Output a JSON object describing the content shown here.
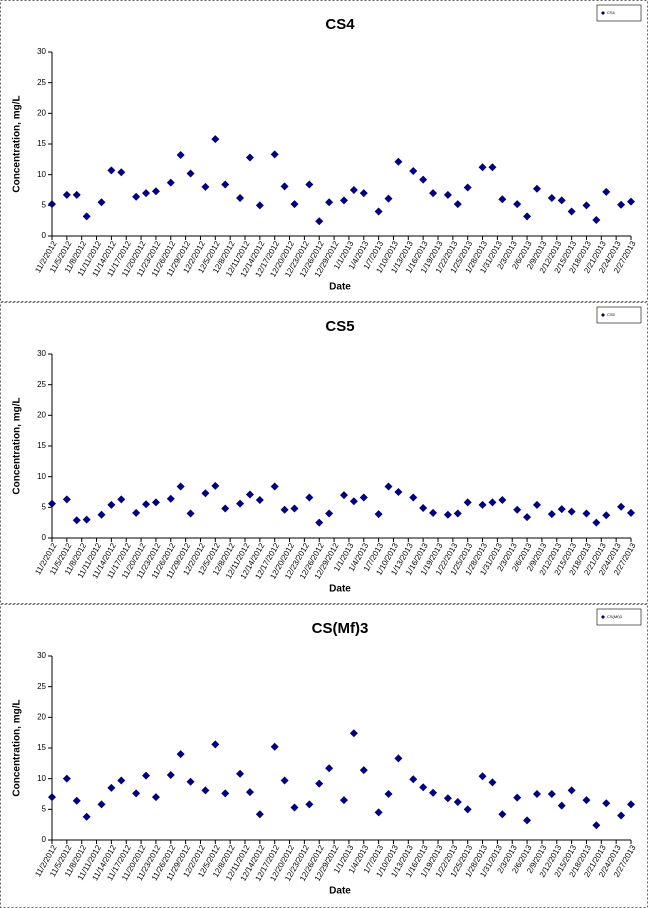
{
  "chart_data": [
    {
      "type": "scatter",
      "title": "CS4",
      "x_label": "Date",
      "y_label": "Concentration, mg/L",
      "x": [
        "11/2/2012",
        "11/5/2012",
        "11/7/2012",
        "11/9/2012",
        "11/12/2012",
        "11/14/2012",
        "11/16/2012",
        "11/19/2012",
        "11/21/2012",
        "11/23/2012",
        "11/26/2012",
        "11/28/2012",
        "11/30/2012",
        "12/3/2012",
        "12/5/2012",
        "12/7/2012",
        "12/10/2012",
        "12/12/2012",
        "12/14/2012",
        "12/17/2012",
        "12/19/2012",
        "12/21/2012",
        "12/24/2012",
        "12/26/2012",
        "12/28/2012",
        "12/31/2012",
        "1/2/2013",
        "1/4/2013",
        "1/7/2013",
        "1/9/2013",
        "1/11/2013",
        "1/14/2013",
        "1/16/2013",
        "1/18/2013",
        "1/21/2013",
        "1/23/2013",
        "1/25/2013",
        "1/28/2013",
        "1/30/2013",
        "2/1/2013",
        "2/4/2013",
        "2/6/2013",
        "2/8/2013",
        "2/11/2013",
        "2/13/2013",
        "2/15/2013",
        "2/18/2013",
        "2/20/2013",
        "2/22/2013",
        "2/25/2013",
        "2/27/2013"
      ],
      "series": [
        {
          "name": "CS4",
          "color": "#000080",
          "values": [
            5.2,
            6.7,
            6.7,
            3.2,
            5.5,
            10.7,
            10.4,
            6.4,
            7.0,
            7.3,
            8.7,
            13.2,
            10.2,
            8.0,
            15.8,
            8.4,
            6.2,
            12.8,
            5.0,
            13.3,
            8.1,
            5.2,
            8.4,
            2.4,
            5.5,
            5.8,
            7.5,
            7.0,
            4.0,
            6.1,
            12.1,
            10.6,
            9.2,
            7.0,
            6.7,
            5.2,
            7.9,
            11.2,
            11.2,
            6.0,
            5.2,
            3.2,
            7.7,
            6.2,
            5.8,
            4.0,
            5.0,
            2.6,
            7.2,
            5.1,
            5.6
          ]
        }
      ],
      "xlim": [
        "11/2/2012",
        "2/27/2013"
      ],
      "xticks": [
        "11/2/2012",
        "11/5/2012",
        "11/8/2012",
        "11/11/2012",
        "11/14/2012",
        "11/17/2012",
        "11/20/2012",
        "11/23/2012",
        "11/26/2012",
        "11/29/2012",
        "12/2/2012",
        "12/5/2012",
        "12/8/2012",
        "12/11/2012",
        "12/14/2012",
        "12/17/2012",
        "12/20/2012",
        "12/23/2012",
        "12/26/2012",
        "12/29/2012",
        "1/1/2013",
        "1/4/2013",
        "1/7/2013",
        "1/10/2013",
        "1/13/2013",
        "1/16/2013",
        "1/19/2013",
        "1/22/2013",
        "1/25/2013",
        "1/28/2013",
        "1/31/2013",
        "2/3/2013",
        "2/6/2013",
        "2/9/2013",
        "2/12/2013",
        "2/15/2013",
        "2/18/2013",
        "2/21/2013",
        "2/24/2013",
        "2/27/2013"
      ],
      "ylim": [
        0,
        30
      ],
      "yticks": [
        0,
        5,
        10,
        15,
        20,
        25,
        30
      ],
      "grid": false,
      "legend": "upper right"
    },
    {
      "type": "scatter",
      "title": "CS5",
      "x_label": "Date",
      "y_label": "Concentration, mg/L",
      "x": [
        "11/2/2012",
        "11/5/2012",
        "11/7/2012",
        "11/9/2012",
        "11/12/2012",
        "11/14/2012",
        "11/16/2012",
        "11/19/2012",
        "11/21/2012",
        "11/23/2012",
        "11/26/2012",
        "11/28/2012",
        "11/30/2012",
        "12/3/2012",
        "12/5/2012",
        "12/7/2012",
        "12/10/2012",
        "12/12/2012",
        "12/14/2012",
        "12/17/2012",
        "12/19/2012",
        "12/21/2012",
        "12/24/2012",
        "12/26/2012",
        "12/28/2012",
        "12/31/2012",
        "1/2/2013",
        "1/4/2013",
        "1/7/2013",
        "1/9/2013",
        "1/11/2013",
        "1/14/2013",
        "1/16/2013",
        "1/18/2013",
        "1/21/2013",
        "1/23/2013",
        "1/25/2013",
        "1/28/2013",
        "1/30/2013",
        "2/1/2013",
        "2/4/2013",
        "2/6/2013",
        "2/8/2013",
        "2/11/2013",
        "2/13/2013",
        "2/15/2013",
        "2/18/2013",
        "2/20/2013",
        "2/22/2013",
        "2/25/2013",
        "2/27/2013"
      ],
      "series": [
        {
          "name": "CS5",
          "color": "#000080",
          "values": [
            5.6,
            6.3,
            2.9,
            3.0,
            3.8,
            5.4,
            6.3,
            4.1,
            5.5,
            5.8,
            6.4,
            8.4,
            4.0,
            7.3,
            8.5,
            4.8,
            5.6,
            7.1,
            6.2,
            8.4,
            4.6,
            4.8,
            6.6,
            2.5,
            4.0,
            7.0,
            6.0,
            6.6,
            3.9,
            8.4,
            7.5,
            6.6,
            4.9,
            4.1,
            3.8,
            4.0,
            5.8,
            5.4,
            5.8,
            6.2,
            4.6,
            3.4,
            5.4,
            3.9,
            4.7,
            4.3,
            4.0,
            2.5,
            3.7,
            5.1,
            4.1
          ]
        }
      ],
      "xlim": [
        "11/2/2012",
        "2/27/2013"
      ],
      "xticks": [
        "11/2/2012",
        "11/5/2012",
        "11/8/2012",
        "11/11/2012",
        "11/14/2012",
        "11/17/2012",
        "11/20/2012",
        "11/23/2012",
        "11/26/2012",
        "11/29/2012",
        "12/2/2012",
        "12/5/2012",
        "12/8/2012",
        "12/11/2012",
        "12/14/2012",
        "12/17/2012",
        "12/20/2012",
        "12/23/2012",
        "12/26/2012",
        "12/29/2012",
        "1/1/2013",
        "1/4/2013",
        "1/7/2013",
        "1/10/2013",
        "1/13/2013",
        "1/16/2013",
        "1/19/2013",
        "1/22/2013",
        "1/25/2013",
        "1/28/2013",
        "1/31/2013",
        "2/3/2013",
        "2/6/2013",
        "2/9/2013",
        "2/12/2013",
        "2/15/2013",
        "2/18/2013",
        "2/21/2013",
        "2/24/2013",
        "2/27/2013"
      ],
      "ylim": [
        0,
        30
      ],
      "yticks": [
        0,
        5,
        10,
        15,
        20,
        25,
        30
      ],
      "grid": false,
      "legend": "upper right"
    },
    {
      "type": "scatter",
      "title": "CS(Mf)3",
      "x_label": "Date",
      "y_label": "Concentration, mg/L",
      "x": [
        "11/2/2012",
        "11/5/2012",
        "11/7/2012",
        "11/9/2012",
        "11/12/2012",
        "11/14/2012",
        "11/16/2012",
        "11/19/2012",
        "11/21/2012",
        "11/23/2012",
        "11/26/2012",
        "11/28/2012",
        "11/30/2012",
        "12/3/2012",
        "12/5/2012",
        "12/7/2012",
        "12/10/2012",
        "12/12/2012",
        "12/14/2012",
        "12/17/2012",
        "12/19/2012",
        "12/21/2012",
        "12/24/2012",
        "12/26/2012",
        "12/28/2012",
        "12/31/2012",
        "1/2/2013",
        "1/4/2013",
        "1/7/2013",
        "1/9/2013",
        "1/11/2013",
        "1/14/2013",
        "1/16/2013",
        "1/18/2013",
        "1/21/2013",
        "1/23/2013",
        "1/25/2013",
        "1/28/2013",
        "1/30/2013",
        "2/1/2013",
        "2/4/2013",
        "2/6/2013",
        "2/8/2013",
        "2/11/2013",
        "2/13/2013",
        "2/15/2013",
        "2/18/2013",
        "2/20/2013",
        "2/22/2013",
        "2/25/2013",
        "2/27/2013"
      ],
      "series": [
        {
          "name": "CS(Mf)3",
          "color": "#000080",
          "values": [
            7.0,
            10.0,
            6.4,
            3.8,
            5.8,
            8.5,
            9.7,
            7.6,
            10.5,
            7.0,
            10.6,
            14.0,
            9.5,
            8.1,
            15.6,
            7.6,
            10.8,
            7.8,
            4.2,
            15.2,
            9.7,
            5.3,
            5.8,
            9.2,
            11.7,
            6.5,
            17.4,
            11.4,
            4.5,
            7.5,
            13.3,
            9.9,
            8.6,
            7.7,
            6.8,
            6.2,
            5.0,
            10.4,
            9.4,
            4.2,
            6.9,
            3.2,
            7.5,
            7.5,
            5.6,
            8.1,
            6.5,
            2.4,
            6.0,
            4.0,
            5.8
          ]
        }
      ],
      "xlim": [
        "11/2/2012",
        "2/27/2013"
      ],
      "xticks": [
        "11/2/2012",
        "11/5/2012",
        "11/8/2012",
        "11/11/2012",
        "11/14/2012",
        "11/17/2012",
        "11/20/2012",
        "11/23/2012",
        "11/26/2012",
        "11/29/2012",
        "12/2/2012",
        "12/5/2012",
        "12/8/2012",
        "12/11/2012",
        "12/14/2012",
        "12/17/2012",
        "12/20/2012",
        "12/23/2012",
        "12/26/2012",
        "12/29/2012",
        "1/1/2013",
        "1/4/2013",
        "1/7/2013",
        "1/10/2013",
        "1/13/2013",
        "1/16/2013",
        "1/19/2013",
        "1/22/2013",
        "1/25/2013",
        "1/28/2013",
        "1/31/2013",
        "2/3/2013",
        "2/6/2013",
        "2/9/2013",
        "2/12/2013",
        "2/15/2013",
        "2/18/2013",
        "2/21/2013",
        "2/24/2013",
        "2/27/2013"
      ],
      "ylim": [
        0,
        30
      ],
      "yticks": [
        0,
        5,
        10,
        15,
        20,
        25,
        30
      ],
      "grid": false,
      "legend": "upper right"
    }
  ]
}
